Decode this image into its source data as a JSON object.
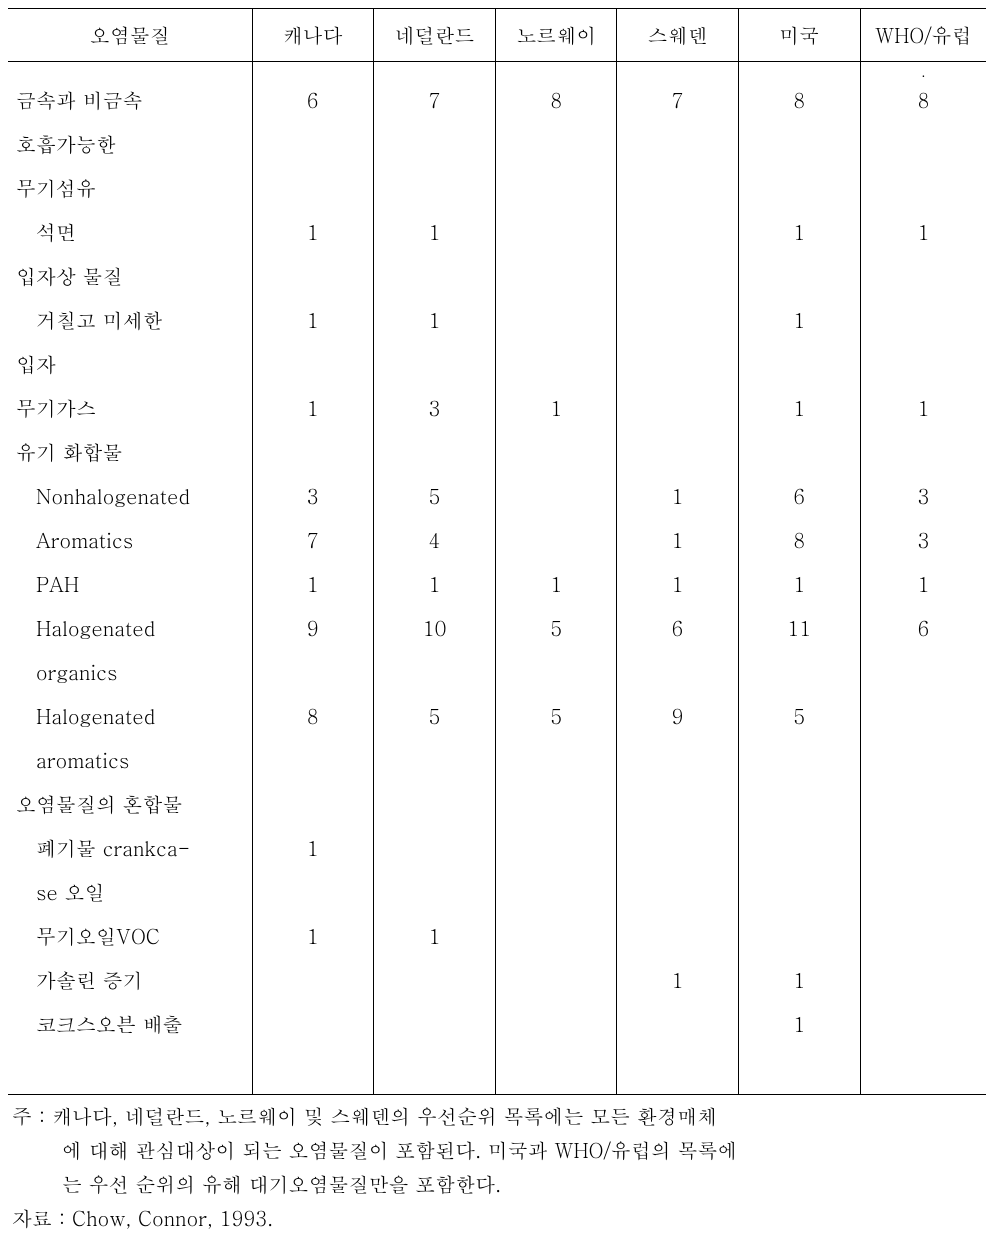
{
  "table": {
    "columns": [
      "오염물질",
      "캐나다",
      "네덜란드",
      "노르웨이",
      "스웨덴",
      "미국",
      "WHO/유럽"
    ],
    "rows": [
      {
        "label": "",
        "indent": 0,
        "v": [
          "",
          "",
          "",
          "",
          "",
          "."
        ]
      },
      {
        "label": "금속과 비금속",
        "indent": 0,
        "v": [
          "6",
          "7",
          "8",
          "7",
          "8",
          "8"
        ]
      },
      {
        "label": "호흡가능한",
        "indent": 0,
        "v": [
          "",
          "",
          "",
          "",
          "",
          ""
        ]
      },
      {
        "label": "무기섬유",
        "indent": 0,
        "v": [
          "",
          "",
          "",
          "",
          "",
          ""
        ]
      },
      {
        "label": "석면",
        "indent": 1,
        "v": [
          "1",
          "1",
          "",
          "",
          "1",
          "1"
        ]
      },
      {
        "label": "입자상 물질",
        "indent": 0,
        "v": [
          "",
          "",
          "",
          "",
          "",
          ""
        ]
      },
      {
        "label": "거칠고 미세한",
        "indent": 1,
        "v": [
          "1",
          "1",
          "",
          "",
          "1",
          ""
        ]
      },
      {
        "label": "입자",
        "indent": 0,
        "v": [
          "",
          "",
          "",
          "",
          "",
          ""
        ]
      },
      {
        "label": "무기가스",
        "indent": 0,
        "v": [
          "1",
          "3",
          "1",
          "",
          "1",
          "1"
        ]
      },
      {
        "label": "유기 화합물",
        "indent": 0,
        "v": [
          "",
          "",
          "",
          "",
          "",
          ""
        ]
      },
      {
        "label": "Nonhalogenated",
        "indent": 1,
        "v": [
          "3",
          "5",
          "",
          "1",
          "6",
          "3"
        ]
      },
      {
        "label": "Aromatics",
        "indent": 1,
        "v": [
          "7",
          "4",
          "",
          "1",
          "8",
          "3"
        ]
      },
      {
        "label": "PAH",
        "indent": 1,
        "v": [
          "1",
          "1",
          "1",
          "1",
          "1",
          "1"
        ]
      },
      {
        "label": "Halogenated",
        "indent": 1,
        "v": [
          "9",
          "10",
          "5",
          "6",
          "11",
          "6"
        ]
      },
      {
        "label": "organics",
        "indent": 1,
        "v": [
          "",
          "",
          "",
          "",
          "",
          ""
        ]
      },
      {
        "label": "Halogenated",
        "indent": 1,
        "v": [
          "8",
          "5",
          "5",
          "9",
          "5",
          ""
        ]
      },
      {
        "label": "aromatics",
        "indent": 1,
        "v": [
          "",
          "",
          "",
          "",
          "",
          ""
        ]
      },
      {
        "label": "오염물질의 혼합물",
        "indent": 0,
        "v": [
          "",
          "",
          "",
          "",
          "",
          ""
        ]
      },
      {
        "label": "폐기물 crankca-",
        "indent": 1,
        "v": [
          "1",
          "",
          "",
          "",
          "",
          ""
        ]
      },
      {
        "label": "se 오일",
        "indent": 1,
        "v": [
          "",
          "",
          "",
          "",
          "",
          ""
        ]
      },
      {
        "label": "무기오일VOC",
        "indent": 1,
        "v": [
          "1",
          "1",
          "",
          "",
          "",
          ""
        ]
      },
      {
        "label": "가솔린 증기",
        "indent": 1,
        "v": [
          "",
          "",
          "",
          "1",
          "1",
          ""
        ]
      },
      {
        "label": "코크스오븐 배출",
        "indent": 1,
        "v": [
          "",
          "",
          "",
          "",
          "1",
          ""
        ]
      },
      {
        "label": "",
        "indent": 0,
        "v": [
          "",
          "",
          "",
          "",
          "",
          ""
        ],
        "spacer": true
      }
    ]
  },
  "notes": {
    "line1": "주 : 캐나다, 네덜란드, 노르웨이 및 스웨덴의 우선순위 목록에는 모든 환경매체",
    "line2": "에 대해 관심대상이 되는 오염물질이 포함된다. 미국과 WHO/유럽의 목록에",
    "line3": "는 우선 순위의 유해 대기오염물질만을 포함한다.",
    "source": "자료 : Chow, Connor, 1993."
  }
}
